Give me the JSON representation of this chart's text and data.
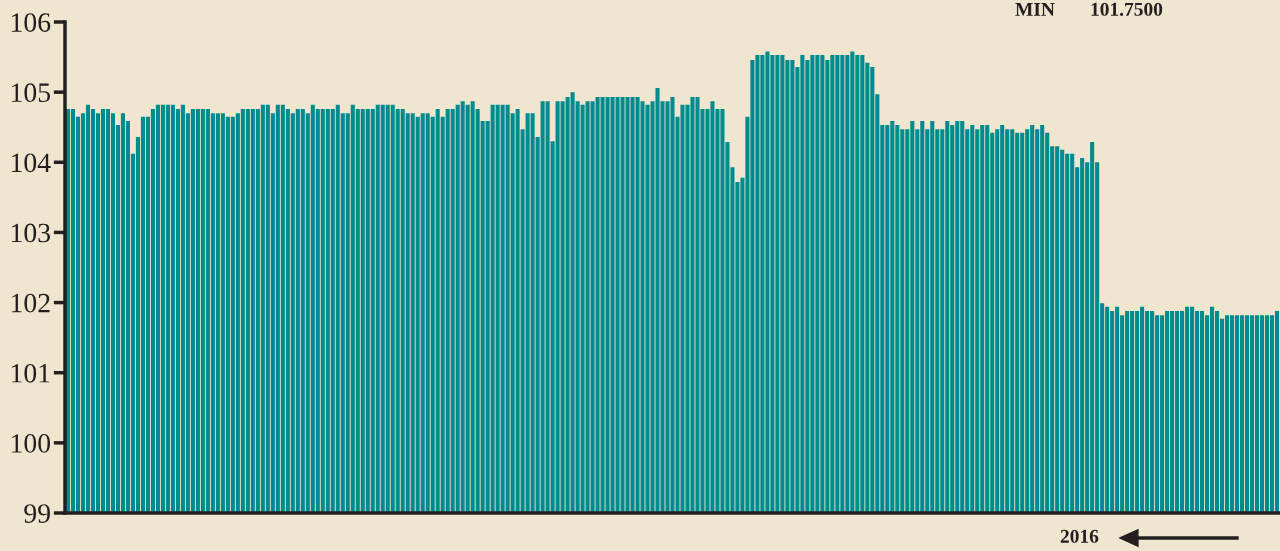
{
  "chart_data": {
    "type": "bar",
    "color": "#008b8f",
    "categories": [
      null,
      null,
      null,
      null,
      null,
      null,
      null,
      null,
      null,
      null,
      null,
      null,
      null,
      null,
      null,
      null,
      null,
      null,
      null,
      null,
      null,
      null,
      null,
      null,
      null,
      null,
      null,
      null,
      null,
      null,
      null,
      null,
      null,
      null,
      null,
      null,
      null,
      null,
      null,
      null,
      null,
      null,
      null,
      null,
      null,
      null,
      null,
      null,
      null,
      null,
      null,
      null,
      null,
      null,
      null,
      null,
      null,
      null,
      null,
      null,
      null,
      null,
      null,
      null,
      null,
      null,
      null,
      null,
      null,
      null,
      null,
      null,
      null,
      null,
      null,
      null,
      null,
      null,
      null,
      null,
      null,
      null,
      null,
      null,
      null,
      null,
      null,
      null,
      null,
      null,
      null,
      null,
      null,
      null,
      null,
      null,
      null,
      null,
      null,
      null,
      null,
      null,
      null,
      null,
      null,
      null,
      null,
      null,
      null,
      null,
      null,
      null,
      null,
      null,
      null,
      null,
      null,
      null,
      null,
      null,
      null,
      null,
      null,
      null,
      null,
      null,
      null,
      null,
      null,
      null,
      null,
      null,
      null,
      null,
      null,
      null,
      null,
      null,
      null,
      null,
      null,
      null,
      null,
      null,
      null,
      null,
      null,
      null,
      null,
      null,
      null,
      null,
      null,
      null,
      null,
      null,
      null,
      null,
      null,
      null,
      null,
      null,
      null,
      null,
      null,
      null,
      null,
      null,
      null,
      null,
      null,
      null,
      null,
      null,
      null,
      null,
      null,
      null,
      null,
      null,
      null,
      null,
      null,
      null,
      null,
      null,
      null,
      null,
      null,
      null,
      null,
      null,
      null,
      null,
      null,
      null,
      null,
      null,
      null,
      null,
      null,
      null,
      null,
      null,
      null,
      null,
      null,
      null,
      null,
      null,
      null,
      null,
      null,
      null,
      null,
      null,
      null,
      null,
      null,
      null,
      null,
      null,
      null,
      null,
      null,
      null,
      null,
      null,
      null,
      null,
      null,
      null,
      null,
      null,
      null,
      null,
      null,
      null,
      null,
      null,
      null,
      null,
      null
    ],
    "values": [
      104.76,
      104.76,
      104.65,
      104.7,
      104.82,
      104.76,
      104.7,
      104.76,
      104.76,
      104.7,
      104.53,
      104.7,
      104.59,
      104.12,
      104.36,
      104.65,
      104.65,
      104.76,
      104.82,
      104.82,
      104.82,
      104.82,
      104.76,
      104.82,
      104.7,
      104.76,
      104.76,
      104.76,
      104.76,
      104.7,
      104.7,
      104.7,
      104.65,
      104.65,
      104.7,
      104.76,
      104.76,
      104.76,
      104.76,
      104.82,
      104.82,
      104.7,
      104.82,
      104.82,
      104.76,
      104.7,
      104.76,
      104.76,
      104.7,
      104.82,
      104.76,
      104.76,
      104.76,
      104.76,
      104.82,
      104.7,
      104.7,
      104.82,
      104.76,
      104.76,
      104.76,
      104.76,
      104.82,
      104.82,
      104.82,
      104.82,
      104.76,
      104.76,
      104.7,
      104.7,
      104.65,
      104.7,
      104.7,
      104.65,
      104.76,
      104.65,
      104.76,
      104.76,
      104.82,
      104.87,
      104.82,
      104.87,
      104.76,
      104.59,
      104.59,
      104.82,
      104.82,
      104.82,
      104.82,
      104.7,
      104.76,
      104.47,
      104.7,
      104.7,
      104.36,
      104.87,
      104.87,
      104.3,
      104.87,
      104.87,
      104.93,
      105.0,
      104.87,
      104.82,
      104.87,
      104.87,
      104.93,
      104.93,
      104.93,
      104.93,
      104.93,
      104.93,
      104.93,
      104.93,
      104.93,
      104.87,
      104.82,
      104.87,
      105.06,
      104.87,
      104.87,
      104.93,
      104.65,
      104.82,
      104.82,
      104.93,
      104.93,
      104.76,
      104.76,
      104.87,
      104.76,
      104.76,
      104.29,
      103.93,
      103.72,
      103.78,
      104.65,
      105.46,
      105.53,
      105.53,
      105.58,
      105.53,
      105.53,
      105.53,
      105.46,
      105.46,
      105.36,
      105.53,
      105.46,
      105.53,
      105.53,
      105.53,
      105.46,
      105.53,
      105.53,
      105.53,
      105.53,
      105.58,
      105.53,
      105.53,
      105.42,
      105.36,
      104.97,
      104.53,
      104.53,
      104.59,
      104.53,
      104.47,
      104.47,
      104.59,
      104.47,
      104.59,
      104.47,
      104.59,
      104.47,
      104.47,
      104.59,
      104.53,
      104.59,
      104.59,
      104.47,
      104.53,
      104.47,
      104.53,
      104.53,
      104.42,
      104.47,
      104.53,
      104.47,
      104.47,
      104.42,
      104.42,
      104.47,
      104.53,
      104.47,
      104.53,
      104.42,
      104.23,
      104.23,
      104.18,
      104.12,
      104.12,
      103.93,
      104.06,
      104.0,
      104.29,
      104.0,
      101.99,
      101.94,
      101.88,
      101.94,
      101.82,
      101.88,
      101.88,
      101.88,
      101.94,
      101.88,
      101.88,
      101.82,
      101.82,
      101.88,
      101.88,
      101.88,
      101.88,
      101.94,
      101.94,
      101.88,
      101.88,
      101.82,
      101.94,
      101.88,
      101.77,
      101.82,
      101.82,
      101.82,
      101.82,
      101.82,
      101.82,
      101.82,
      101.82,
      101.82,
      101.82,
      101.88
    ],
    "ylim": [
      99,
      106
    ],
    "yticks": [
      99,
      100,
      101,
      102,
      103,
      104,
      105,
      106
    ],
    "grid": false,
    "annotations": [
      "MIN",
      "101.7500",
      "2016"
    ]
  }
}
